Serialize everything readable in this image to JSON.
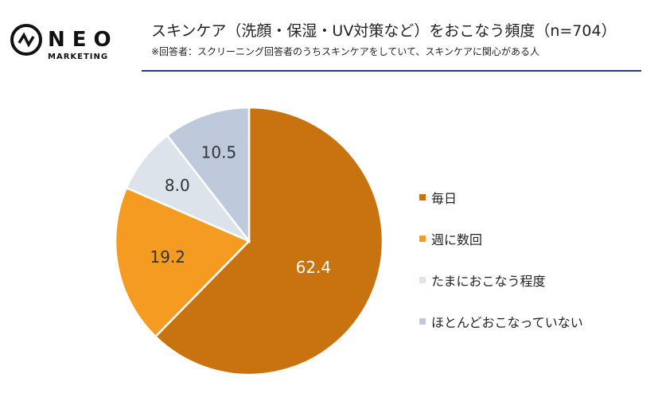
{
  "logo": {
    "brand": "NEO",
    "sub": "MARKETING"
  },
  "header": {
    "title": "スキンケア（洗顔・保湿・UV対策など）をおこなう頻度（n=704）",
    "subtitle": "※回答者：スクリーニング回答者のうちスキンケアをしていて、スキンケアに関心がある人"
  },
  "chart_data": {
    "type": "pie",
    "start": "top",
    "direction": "clockwise",
    "categories": [
      "毎日",
      "週に数回",
      "たまにおこなう程度",
      "ほとんどおこなっていない"
    ],
    "values": [
      62.4,
      19.2,
      8.0,
      10.5
    ],
    "labels": [
      "62.4",
      "19.2",
      "8.0",
      "10.5"
    ],
    "colors": [
      "#C8730F",
      "#F59B22",
      "#DDE3EB",
      "#BECADC"
    ],
    "label_colors": [
      "#ffffff",
      "#333333",
      "#333333",
      "#333333"
    ],
    "legend_position": "right"
  }
}
